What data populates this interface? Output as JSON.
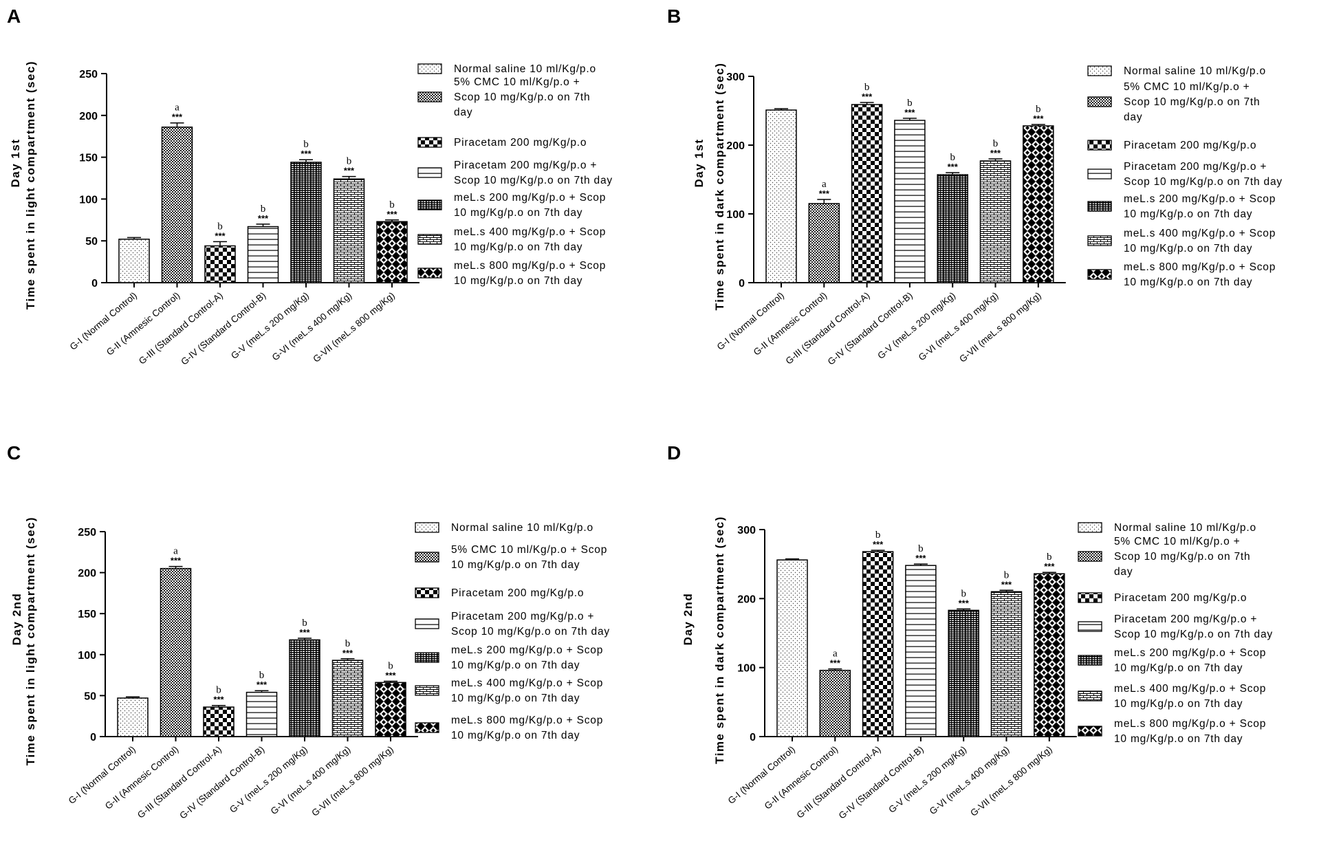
{
  "chart_data": [
    {
      "type": "bar",
      "panel": "A",
      "ylabel": "Time spent in light compartment (sec)",
      "day_label": "Day 1st",
      "ylim": [
        0,
        250
      ],
      "yticks": [
        0,
        50,
        100,
        150,
        200,
        250
      ],
      "categories": [
        "G-I (Normal Control)",
        "G-II (Amnesic Control)",
        "G-III (Standard Control-A)",
        "G-IV (Standard Control-B)",
        "G-V (meL.s 200 mg/Kg)",
        "G-VI (meL.s 400 mg/Kg)",
        "G-VII (meL.s 800 mg/Kg)"
      ],
      "values": [
        52,
        186,
        44,
        67,
        144,
        124,
        73
      ],
      "errors": [
        2,
        5,
        5,
        3,
        3,
        3,
        2
      ],
      "stars": [
        "",
        "***",
        "***",
        "***",
        "***",
        "***",
        "***"
      ],
      "sig": [
        "",
        "a",
        "b",
        "b",
        "b",
        "b",
        "b"
      ],
      "legend": [
        [
          "Normal saline 10 ml/Kg/p.o"
        ],
        [
          "5% CMC 10 ml/Kg/p.o +",
          "Scop 10 mg/Kg/p.o on 7th",
          "day"
        ],
        [
          "Piracetam 200 mg/Kg/p.o"
        ],
        [
          "Piracetam 200 mg/Kg/p.o +",
          "Scop 10 mg/Kg/p.o on 7th day"
        ],
        [
          "meL.s 200 mg/Kg/p.o + Scop",
          "10 mg/Kg/p.o on 7th day"
        ],
        [
          "meL.s 400 mg/Kg/p.o + Scop",
          "10 mg/Kg/p.o on 7th day"
        ],
        [
          "meL.s 800 mg/Kg/p.o + Scop",
          "10 mg/Kg/p.o on 7th day"
        ]
      ]
    },
    {
      "type": "bar",
      "panel": "B",
      "ylabel": "Time spent in dark compartment (sec)",
      "day_label": "Day 1st",
      "ylim": [
        0,
        300
      ],
      "yticks": [
        0,
        100,
        200,
        300
      ],
      "categories": [
        "G-I (Normal Control)",
        "G-II (Amnesic Control)",
        "G-III (Standard Control-A)",
        "G-IV (Standard Control-B)",
        "G-V (meL.s 200 mg/Kg)",
        "G-VI (meL.s 400 mg/Kg)",
        "G-VII (meL.s 800 mg/Kg)"
      ],
      "values": [
        251,
        115,
        259,
        236,
        157,
        177,
        228
      ],
      "errors": [
        2,
        6,
        3,
        3,
        3,
        3,
        2
      ],
      "stars": [
        "",
        "***",
        "***",
        "***",
        "***",
        "***",
        "***"
      ],
      "sig": [
        "",
        "a",
        "b",
        "b",
        "b",
        "b",
        "b"
      ],
      "legend": [
        [
          "Normal saline 10 ml/Kg/p.o"
        ],
        [
          "5% CMC 10 ml/Kg/p.o +",
          "Scop 10 mg/Kg/p.o on 7th",
          "day"
        ],
        [
          "Piracetam 200 mg/Kg/p.o"
        ],
        [
          "Piracetam 200 mg/Kg/p.o +",
          "Scop 10 mg/Kg/p.o on 7th day"
        ],
        [
          "meL.s 200 mg/Kg/p.o + Scop",
          "10 mg/Kg/p.o on 7th day"
        ],
        [
          "meL.s 400 mg/Kg/p.o + Scop",
          "10 mg/Kg/p.o on 7th day"
        ],
        [
          "meL.s 800 mg/Kg/p.o + Scop",
          "10 mg/Kg/p.o on 7th day"
        ]
      ]
    },
    {
      "type": "bar",
      "panel": "C",
      "ylabel": "Time spent in light compartment (sec)",
      "day_label": "Day 2nd",
      "ylim": [
        0,
        250
      ],
      "yticks": [
        0,
        50,
        100,
        150,
        200,
        250
      ],
      "categories": [
        "G-I (Normal Control)",
        "G-II (Amnesic Control)",
        "G-III (Standard Control-A)",
        "G-IV (Standard Control-B)",
        "G-V (meL.s 200 mg/Kg)",
        "G-VI (meL.s 400 mg/Kg)",
        "G-VII (meL.s 800 mg/Kg)"
      ],
      "values": [
        47,
        205,
        36,
        54,
        118,
        93,
        66
      ],
      "errors": [
        1.5,
        2.5,
        2,
        2,
        2,
        2,
        1.5
      ],
      "stars": [
        "",
        "***",
        "***",
        "***",
        "***",
        "***",
        "***"
      ],
      "sig": [
        "",
        "a",
        "b",
        "b",
        "b",
        "b",
        "b"
      ],
      "legend": [
        [
          "Normal saline 10 ml/Kg/p.o"
        ],
        [
          "5% CMC 10 ml/Kg/p.o + Scop",
          "10 mg/Kg/p.o on 7th day"
        ],
        [
          "Piracetam 200 mg/Kg/p.o"
        ],
        [
          "Piracetam 200 mg/Kg/p.o +",
          "Scop 10 mg/Kg/p.o on 7th day"
        ],
        [
          "meL.s 200 mg/Kg/p.o + Scop",
          "10 mg/Kg/p.o on 7th day"
        ],
        [
          "meL.s 400 mg/Kg/p.o + Scop",
          "10 mg/Kg/p.o on 7th day"
        ],
        [
          "meL.s 800 mg/Kg/p.o + Scop",
          "10 mg/Kg/p.o on 7th day"
        ]
      ]
    },
    {
      "type": "bar",
      "panel": "D",
      "ylabel": "Time spent in dark compartment (sec)",
      "day_label": "Day 2nd",
      "ylim": [
        0,
        300
      ],
      "yticks": [
        0,
        100,
        200,
        300
      ],
      "categories": [
        "G-I (Normal Control)",
        "G-II (Amnesic Control)",
        "G-III (Standard Control-A)",
        "G-IV (Standard Control-B)",
        "G-V (meL.s 200 mg/Kg)",
        "G-VI (meL.s 400 mg/Kg)",
        "G-VII (meL.s 800 mg/Kg)"
      ],
      "values": [
        256,
        96,
        268,
        248,
        183,
        210,
        236
      ],
      "errors": [
        1.5,
        2,
        2,
        2,
        2,
        2,
        2
      ],
      "stars": [
        "",
        "***",
        "***",
        "***",
        "***",
        "***",
        "***"
      ],
      "sig": [
        "",
        "a",
        "b",
        "b",
        "b",
        "b",
        "b"
      ],
      "legend": [
        [
          "Normal saline 10 ml/Kg/p.o"
        ],
        [
          "5% CMC 10 ml/Kg/p.o +",
          "Scop 10 mg/Kg/p.o on 7th",
          "day"
        ],
        [
          "Piracetam 200 mg/Kg/p.o"
        ],
        [
          "Piracetam 200 mg/Kg/p.o +",
          "Scop 10 mg/Kg/p.o on 7th day"
        ],
        [
          "meL.s 200 mg/Kg/p.o + Scop",
          "10 mg/Kg/p.o on 7th day"
        ],
        [
          "meL.s 400 mg/Kg/p.o + Scop",
          "10 mg/Kg/p.o on 7th day"
        ],
        [
          "meL.s 800 mg/Kg/p.o + Scop",
          "10 mg/Kg/p.o on 7th day"
        ]
      ]
    }
  ],
  "patterns": [
    "dots",
    "fine-check",
    "big-check",
    "hlines",
    "brick",
    "hbrick",
    "xcheck"
  ]
}
